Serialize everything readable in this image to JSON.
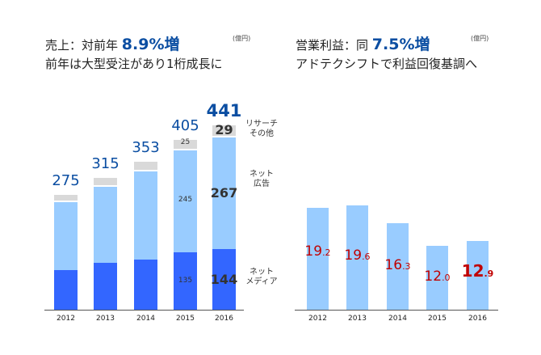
{
  "left": {
    "title_prefix": "売上：対前年",
    "title_value": "8.9%増",
    "subtitle": "前年は大型受注があり1桁成長に",
    "unit": "(億円)"
  },
  "right": {
    "title_prefix": "営業利益：同",
    "title_value": "7.5%増",
    "subtitle": "アドテクシフトで利益回復基調へ",
    "unit": "(億円)"
  },
  "colors": {
    "media": "#3366ff",
    "net_ad": "#99ccff",
    "other": "#d9d9d9",
    "total": "#0b4ea2",
    "profit": "#c00000"
  },
  "chart_data": [
    {
      "type": "bar",
      "stacked": true,
      "categories": [
        "2012",
        "2013",
        "2014",
        "2015",
        "2016"
      ],
      "series": [
        {
          "name": "ネット\nメディア",
          "key": "media",
          "values": [
            94,
            111,
            118,
            135,
            144
          ]
        },
        {
          "name": "ネット\n広告",
          "key": "net_ad",
          "values": [
            164,
            183,
            212,
            245,
            267
          ]
        },
        {
          "name": "リサーチ\nその他",
          "key": "other",
          "values": [
            17,
            21,
            23,
            25,
            29
          ]
        }
      ],
      "totals": [
        "275",
        "315",
        "353",
        "405",
        "441"
      ],
      "shown_segment_labels": {
        "2015": [
          "135",
          "245",
          "25"
        ],
        "2016": [
          "144",
          "267",
          "29"
        ]
      },
      "legend": [
        "ネット\nメディア",
        "ネット\n広告",
        "リサーチ\nその他"
      ],
      "ylim": [
        0,
        441
      ]
    },
    {
      "type": "bar",
      "categories": [
        "2012",
        "2013",
        "2014",
        "2015",
        "2016"
      ],
      "values": [
        19.2,
        19.6,
        16.3,
        12.0,
        12.9
      ],
      "labels": [
        [
          "19",
          ".2"
        ],
        [
          "19",
          ".6"
        ],
        [
          "16",
          ".3"
        ],
        [
          "12",
          ".0"
        ],
        [
          "12",
          ".9"
        ]
      ],
      "ylim": [
        0,
        19.2
      ]
    }
  ]
}
